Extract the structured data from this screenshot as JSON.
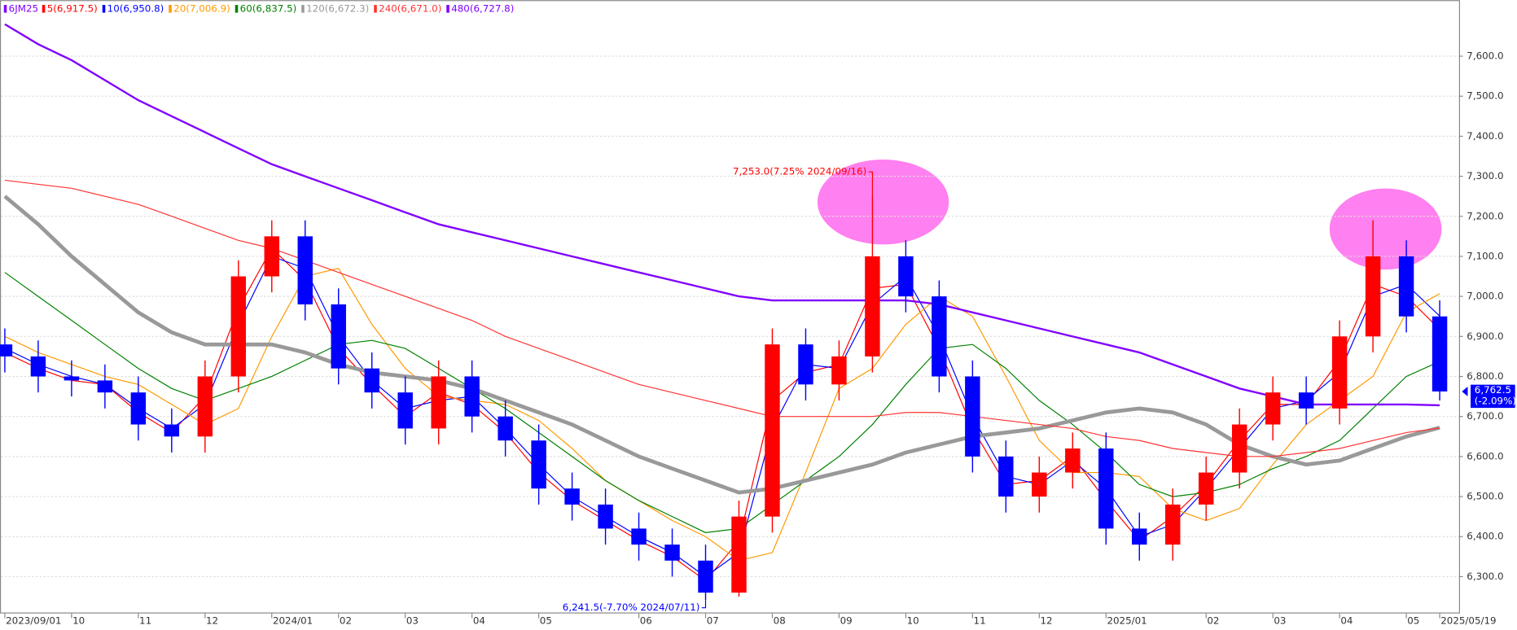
{
  "chart_data": {
    "type": "candlestick",
    "title": "6JM25",
    "title_color": "#8000ff",
    "up_color": "#ff0000",
    "down_color": "#0000ff",
    "grid": true,
    "ylim": [
      6208,
      7740
    ],
    "yticks": [
      {
        "value": 6300,
        "label": "6,300.0"
      },
      {
        "value": 6400,
        "label": "6,400.0"
      },
      {
        "value": 6500,
        "label": "6,500.0"
      },
      {
        "value": 6600,
        "label": "6,600.0"
      },
      {
        "value": 6700,
        "label": "6,700.0"
      },
      {
        "value": 6800,
        "label": "6,800.0"
      },
      {
        "value": 6900,
        "label": "6,900.0"
      },
      {
        "value": 7000,
        "label": "7,000.0"
      },
      {
        "value": 7100,
        "label": "7,100.0"
      },
      {
        "value": 7200,
        "label": "7,200.0"
      },
      {
        "value": 7300,
        "label": "7,300.0"
      },
      {
        "value": 7400,
        "label": "7,400.0"
      },
      {
        "value": 7500,
        "label": "7,500.0"
      },
      {
        "value": 7600,
        "label": "7,600.0"
      }
    ],
    "categories": [
      "2023/09/01",
      null,
      "10",
      null,
      "11",
      null,
      "12",
      null,
      "2024/01",
      null,
      "02",
      null,
      "03",
      null,
      "04",
      null,
      "05",
      null,
      null,
      "06",
      null,
      "07",
      null,
      "08",
      null,
      "09",
      null,
      "10",
      null,
      "11",
      null,
      "12",
      null,
      "2025/01",
      null,
      null,
      "02",
      null,
      "03",
      null,
      "04",
      null,
      "05",
      "2025/05/19"
    ],
    "open": [
      6880,
      6850,
      6800,
      6790,
      6760,
      6680,
      6650,
      6800,
      7050,
      7150,
      6980,
      6820,
      6760,
      6670,
      6800,
      6700,
      6640,
      6520,
      6480,
      6420,
      6380,
      6340,
      6260,
      6450,
      6880,
      6780,
      6850,
      7100,
      7000,
      6800,
      6600,
      6500,
      6560,
      6620,
      6420,
      6380,
      6480,
      6560,
      6680,
      6760,
      6720,
      6900,
      7100,
      6950
    ],
    "high": [
      6920,
      6890,
      6840,
      6830,
      6800,
      6720,
      6840,
      7090,
      7190,
      7190,
      7020,
      6860,
      6800,
      6840,
      6840,
      6740,
      6680,
      6560,
      6520,
      6460,
      6420,
      6380,
      6490,
      6920,
      6920,
      6890,
      7253.0,
      7140,
      7040,
      6840,
      6640,
      6600,
      6660,
      6660,
      6460,
      6520,
      6600,
      6720,
      6800,
      6800,
      6940,
      7190,
      7140,
      6990
    ],
    "low": [
      6810,
      6760,
      6750,
      6720,
      6640,
      6610,
      6610,
      6760,
      7010,
      6940,
      6780,
      6720,
      6630,
      6630,
      6660,
      6600,
      6480,
      6440,
      6380,
      6340,
      6300,
      6241.5,
      6250,
      6410,
      6740,
      6740,
      6810,
      6960,
      6760,
      6560,
      6460,
      6460,
      6520,
      6380,
      6340,
      6340,
      6440,
      6520,
      6640,
      6680,
      6680,
      6860,
      6910,
      6740
    ],
    "close": [
      6850,
      6800,
      6790,
      6760,
      6680,
      6650,
      6800,
      7050,
      7150,
      6980,
      6820,
      6760,
      6670,
      6800,
      6700,
      6640,
      6520,
      6480,
      6420,
      6380,
      6340,
      6260,
      6450,
      6880,
      6780,
      6850,
      7100,
      7000,
      6800,
      6600,
      6500,
      6560,
      6620,
      6420,
      6380,
      6480,
      6560,
      6680,
      6760,
      6720,
      6900,
      7100,
      6950,
      6762.5
    ],
    "series": [
      {
        "name": "5(6,917.5)",
        "color": "#ff0000",
        "width": 1,
        "values": [
          6860,
          6820,
          6790,
          6780,
          6710,
          6660,
          6750,
          6970,
          7120,
          7040,
          6870,
          6780,
          6700,
          6760,
          6730,
          6660,
          6560,
          6490,
          6440,
          6390,
          6350,
          6290,
          6390,
          6740,
          6810,
          6830,
          7020,
          7030,
          6870,
          6670,
          6530,
          6540,
          6600,
          6490,
          6390,
          6450,
          6530,
          6640,
          6730,
          6730,
          6840,
          7030,
          7000,
          6917.5
        ]
      },
      {
        "name": "10(6,950.8)",
        "color": "#0000ff",
        "width": 1,
        "values": [
          6870,
          6830,
          6800,
          6780,
          6720,
          6670,
          6730,
          6930,
          7100,
          7070,
          6900,
          6790,
          6720,
          6740,
          6750,
          6670,
          6580,
          6500,
          6450,
          6400,
          6360,
          6300,
          6360,
          6670,
          6830,
          6820,
          6980,
          7050,
          6900,
          6700,
          6550,
          6530,
          6590,
          6520,
          6400,
          6430,
          6520,
          6620,
          6720,
          6740,
          6810,
          7000,
          7030,
          6950.8
        ]
      },
      {
        "name": "20(7,006.9)",
        "color": "#ff9900",
        "width": 1,
        "values": [
          6900,
          6860,
          6830,
          6800,
          6780,
          6730,
          6680,
          6720,
          6900,
          7050,
          7070,
          6930,
          6820,
          6750,
          6740,
          6730,
          6690,
          6620,
          6540,
          6490,
          6440,
          6400,
          6340,
          6360,
          6560,
          6770,
          6820,
          6930,
          7000,
          6950,
          6800,
          6640,
          6560,
          6560,
          6550,
          6470,
          6440,
          6470,
          6580,
          6680,
          6740,
          6800,
          6960,
          7006.9
        ]
      },
      {
        "name": "60(6,837.5)",
        "color": "#008000",
        "width": 1,
        "values": [
          7060,
          7000,
          6940,
          6880,
          6820,
          6770,
          6740,
          6770,
          6800,
          6840,
          6880,
          6890,
          6870,
          6820,
          6770,
          6720,
          6660,
          6600,
          6540,
          6490,
          6450,
          6410,
          6420,
          6480,
          6540,
          6600,
          6680,
          6780,
          6870,
          6880,
          6820,
          6740,
          6680,
          6610,
          6530,
          6500,
          6510,
          6530,
          6570,
          6600,
          6640,
          6720,
          6800,
          6837.5
        ]
      },
      {
        "name": "120(6,672.3)",
        "color": "#999999",
        "width": 4,
        "values": [
          7250,
          7180,
          7100,
          7030,
          6960,
          6910,
          6880,
          6880,
          6880,
          6860,
          6830,
          6810,
          6800,
          6790,
          6770,
          6740,
          6710,
          6680,
          6640,
          6600,
          6570,
          6540,
          6510,
          6520,
          6540,
          6560,
          6580,
          6610,
          6630,
          6650,
          6660,
          6670,
          6690,
          6710,
          6720,
          6710,
          6680,
          6630,
          6600,
          6580,
          6590,
          6620,
          6650,
          6672.3
        ]
      },
      {
        "name": "240(6,671.0)",
        "color": "#ff3333",
        "width": 1,
        "values": [
          7290,
          7280,
          7270,
          7250,
          7230,
          7200,
          7170,
          7140,
          7120,
          7090,
          7060,
          7030,
          7000,
          6970,
          6940,
          6900,
          6870,
          6840,
          6810,
          6780,
          6760,
          6740,
          6720,
          6700,
          6700,
          6700,
          6700,
          6710,
          6710,
          6700,
          6690,
          6680,
          6670,
          6650,
          6640,
          6620,
          6610,
          6600,
          6600,
          6610,
          6620,
          6640,
          6660,
          6671.0
        ]
      },
      {
        "name": "480(6,727.8)",
        "color": "#8000ff",
        "width": 2,
        "values": [
          7680,
          7630,
          7590,
          7540,
          7490,
          7450,
          7410,
          7370,
          7330,
          7300,
          7270,
          7240,
          7210,
          7180,
          7160,
          7140,
          7120,
          7100,
          7080,
          7060,
          7040,
          7020,
          7000,
          6990,
          6990,
          6990,
          6990,
          6990,
          6980,
          6960,
          6940,
          6920,
          6900,
          6880,
          6860,
          6830,
          6800,
          6770,
          6750,
          6730,
          6730,
          6730,
          6730,
          6727.8
        ]
      }
    ],
    "annotations": [
      {
        "text": "7,253.0(7.25% 2024/09/16)",
        "index": 26,
        "value": 7253.0,
        "color": "#ff0000"
      },
      {
        "text": "6,241.5(-7.70% 2024/07/11)",
        "index": 21,
        "value": 6241.5,
        "color": "#0000ff"
      }
    ],
    "price_tag": {
      "value": 6762.5,
      "label": "6,762.5",
      "change": "(-2.09%)",
      "color": "#0000ff"
    }
  }
}
